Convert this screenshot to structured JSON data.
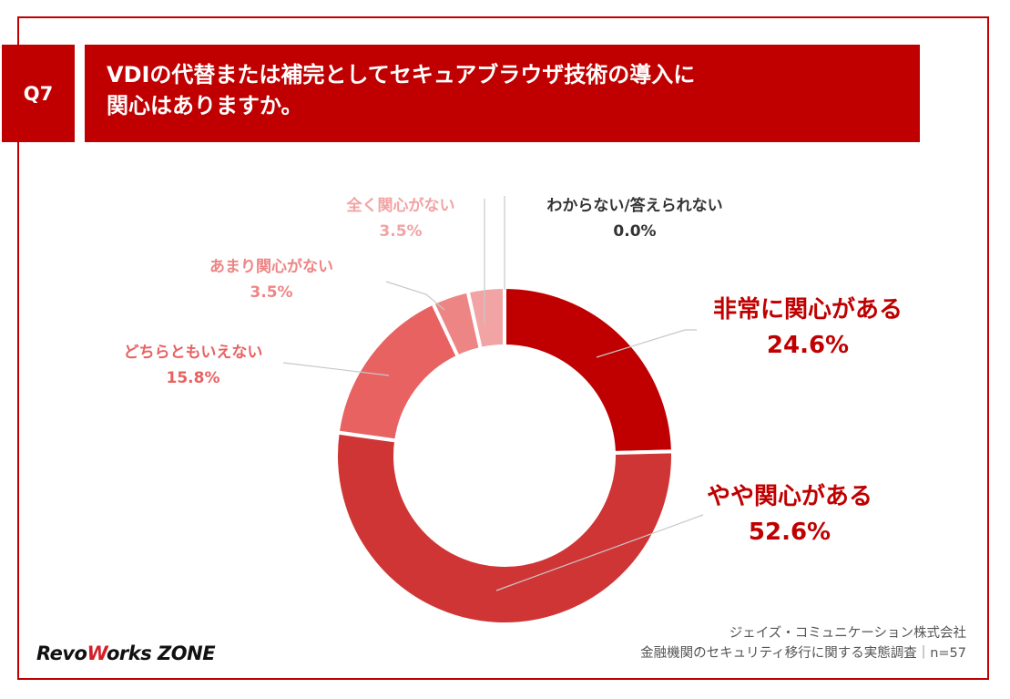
{
  "header": {
    "question": "Q7",
    "title_line1": "VDIの代替または補完としてセキュアブラウザ技術の導入に",
    "title_line2": "関心はありますか。"
  },
  "chart_data": {
    "type": "pie",
    "donut": true,
    "slices": [
      {
        "label": "非常に関心がある",
        "value": 24.6,
        "value_label": "24.6%",
        "color": "#c00000"
      },
      {
        "label": "やや関心がある",
        "value": 52.6,
        "value_label": "52.6%",
        "color": "#d03535"
      },
      {
        "label": "どちらともいえない",
        "value": 15.8,
        "value_label": "15.8%",
        "color": "#e86262"
      },
      {
        "label": "あまり関心がない",
        "value": 3.5,
        "value_label": "3.5%",
        "color": "#ee8585"
      },
      {
        "label": "全く関心がない",
        "value": 3.5,
        "value_label": "3.5%",
        "color": "#f2a3a3"
      },
      {
        "label": "わからない/答えられない",
        "value": 0.0,
        "value_label": "0.0%",
        "color": "#333333"
      }
    ]
  },
  "footer": {
    "logo_part1": "Revo",
    "logo_part2": "W",
    "logo_part3": "orks ZONE",
    "source_line1": "ジェイズ・コミュニケーション株式会社",
    "source_line2": "金融機関のセキュリティ移行に関する実態調査｜n=57"
  }
}
